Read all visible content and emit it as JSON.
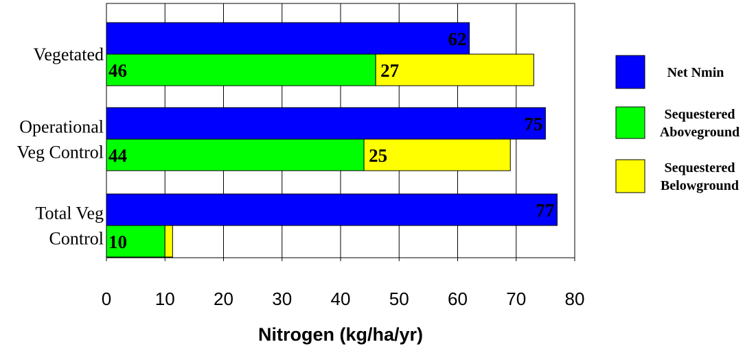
{
  "chart_data": {
    "type": "bar",
    "orientation": "horizontal",
    "stacked": true,
    "title": "",
    "xlabel": "Nitrogen (kg/ha/yr)",
    "ylabel": "",
    "xlim": [
      0,
      80
    ],
    "xticks": [
      "0",
      "10",
      "20",
      "30",
      "40",
      "50",
      "60",
      "70",
      "80"
    ],
    "grid": "vertical",
    "legend_position": "right",
    "groups": [
      {
        "label_lines": [
          "Vegetated"
        ],
        "net_nmin": {
          "value": 62,
          "display": "62"
        },
        "aboveground": {
          "value": 46,
          "display": "46"
        },
        "belowground": {
          "value": 27,
          "display": "27"
        }
      },
      {
        "label_lines": [
          "Operational",
          "Veg Control"
        ],
        "net_nmin": {
          "value": 75,
          "display": "75"
        },
        "aboveground": {
          "value": 44,
          "display": "44"
        },
        "belowground": {
          "value": 25,
          "display": "25"
        }
      },
      {
        "label_lines": [
          "Total Veg",
          "Control"
        ],
        "net_nmin": {
          "value": 77,
          "display": "77"
        },
        "aboveground": {
          "value": 10,
          "display": "10"
        },
        "belowground": {
          "value": 1.3,
          "display": ""
        }
      }
    ],
    "series": [
      {
        "key": "net_nmin",
        "name_lines": [
          "Net Nmin"
        ],
        "color": "#0000FF"
      },
      {
        "key": "aboveground",
        "name_lines": [
          "Sequestered",
          "Aboveground"
        ],
        "color": "#00FF00"
      },
      {
        "key": "belowground",
        "name_lines": [
          "Sequestered",
          "Belowground"
        ],
        "color": "#FFFF00"
      }
    ]
  }
}
